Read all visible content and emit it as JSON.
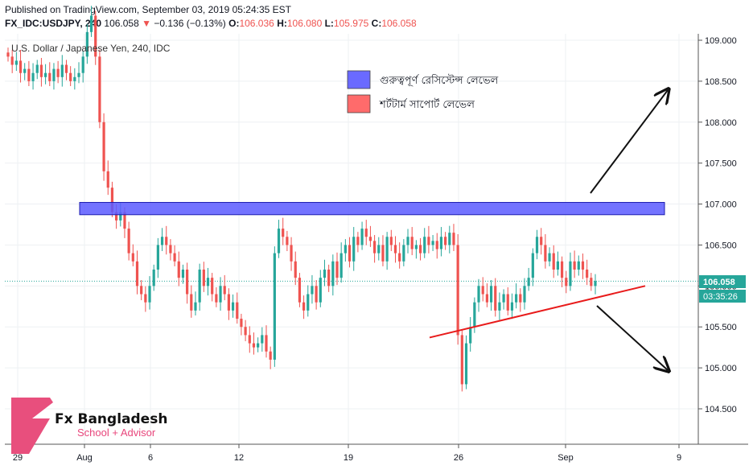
{
  "header": {
    "published": "Published on TradingView.com, September 03, 2019 05:24:35 EST",
    "symbol": "FX_IDC:USDJPY, 240",
    "last": "106.058",
    "change": "−0.136 (−0.13%)",
    "o_label": "O:",
    "o": "106.036",
    "h_label": "H:",
    "h": "106.080",
    "l_label": "L:",
    "l": "105.975",
    "c_label": "C:",
    "c": "106.058"
  },
  "chart_data": {
    "type": "candlestick",
    "title": "U.S. Dollar / Japanese Yen, 240, IDC",
    "ylim": [
      104.2,
      109.1
    ],
    "y_ticks": [
      "109.000",
      "108.500",
      "108.000",
      "107.500",
      "107.000",
      "106.500",
      "106.000",
      "105.500",
      "105.000",
      "104.500"
    ],
    "x_ticks": [
      "29",
      "Aug",
      "6",
      "12",
      "19",
      "26",
      "Sep",
      "9"
    ],
    "last_price_label": "106.058",
    "countdown_label": "03:35:26",
    "closes": [
      108.8,
      108.7,
      108.75,
      108.6,
      108.65,
      108.5,
      108.6,
      108.7,
      108.55,
      108.6,
      108.5,
      108.65,
      108.55,
      108.7,
      108.6,
      108.5,
      108.55,
      108.6,
      108.8,
      109.1,
      109.3,
      108.8,
      108.0,
      107.4,
      107.2,
      106.9,
      106.8,
      106.9,
      106.7,
      106.4,
      106.3,
      106.0,
      105.9,
      105.8,
      106.0,
      106.2,
      106.5,
      106.6,
      106.5,
      106.4,
      106.3,
      106.1,
      106.2,
      105.9,
      105.7,
      105.8,
      106.2,
      106.0,
      106.1,
      105.9,
      105.8,
      106.0,
      105.9,
      105.7,
      105.8,
      105.6,
      105.5,
      105.4,
      105.3,
      105.25,
      105.3,
      105.4,
      105.2,
      105.1,
      106.4,
      106.7,
      106.6,
      106.5,
      106.3,
      106.1,
      105.8,
      105.7,
      105.9,
      106.0,
      105.8,
      106.1,
      106.2,
      106.0,
      106.3,
      106.1,
      106.4,
      106.5,
      106.3,
      106.6,
      106.5,
      106.7,
      106.6,
      106.55,
      106.4,
      106.5,
      106.3,
      106.6,
      106.5,
      106.4,
      106.3,
      106.5,
      106.6,
      106.45,
      106.5,
      106.4,
      106.6,
      106.5,
      106.55,
      106.45,
      106.6,
      106.5,
      106.65,
      106.5,
      105.4,
      104.8,
      105.3,
      105.5,
      105.8,
      106.0,
      105.9,
      105.8,
      106.0,
      105.7,
      105.8,
      105.9,
      105.7,
      105.8,
      105.9,
      105.8,
      106.0,
      106.1,
      106.4,
      106.6,
      106.5,
      106.3,
      106.4,
      106.2,
      106.3,
      106.1,
      106.0,
      106.3,
      106.2,
      106.3,
      106.2,
      106.1,
      106.0,
      106.06
    ]
  },
  "annotations": {
    "resistance": {
      "low": 106.87,
      "high": 107.02,
      "color": "#5b5bff"
    },
    "support_line": {
      "from": [
        105.37,
        106.98
      ],
      "to": [
        106.0,
        107.02
      ],
      "color": "#e81b1b"
    }
  },
  "legend": {
    "items": [
      {
        "label": "গুরুত্বপূর্ণ রেসিস্টেন্স লেভেল",
        "color": "#6a6aff"
      },
      {
        "label": "শর্টটার্ম সাপোর্ট লেভেল",
        "color": "#ff6b6b"
      }
    ]
  },
  "logo": {
    "title": "Fx Bangladesh",
    "subtitle": "School + Advisor"
  },
  "colors": {
    "up": "#26a69a",
    "down": "#ef5350",
    "accent": "#5b5bff"
  }
}
